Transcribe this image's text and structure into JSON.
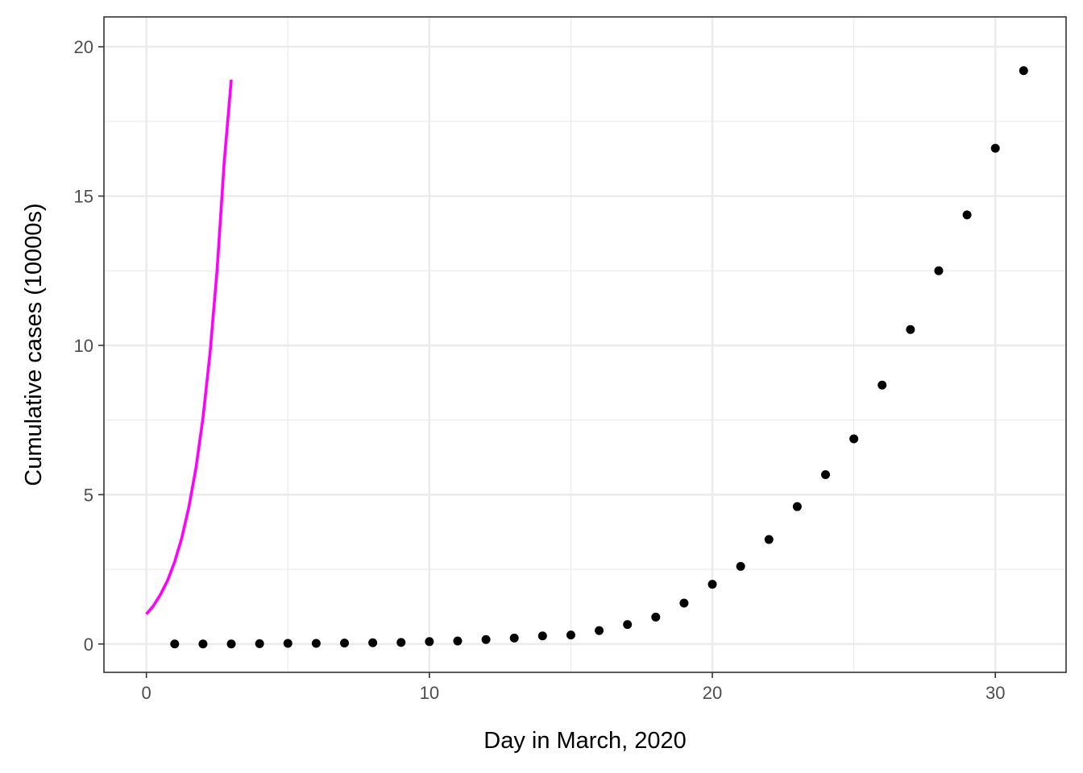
{
  "chart_data": {
    "type": "scatter",
    "title": "",
    "xlabel": "Day in March, 2020",
    "ylabel": "Cumulative cases (10000s)",
    "xlim": [
      -1.5,
      32.5
    ],
    "ylim": [
      -0.95,
      21.0
    ],
    "x_ticks": [
      0,
      10,
      20,
      30
    ],
    "y_ticks": [
      0,
      5,
      10,
      15,
      20
    ],
    "x_minor_ticks": [
      5,
      15,
      25
    ],
    "y_minor_ticks": [
      2.5,
      7.5,
      12.5,
      17.5
    ],
    "grid": true,
    "legend": "none",
    "series": [
      {
        "kind": "points",
        "color": "#000000",
        "x": [
          1,
          2,
          3,
          4,
          5,
          6,
          7,
          8,
          9,
          10,
          11,
          12,
          13,
          14,
          15,
          16,
          17,
          18,
          19,
          20,
          21,
          22,
          23,
          24,
          25,
          26,
          27,
          28,
          29,
          30,
          31
        ],
        "values": [
          0.0,
          0.0,
          0.0,
          0.01,
          0.02,
          0.02,
          0.03,
          0.04,
          0.05,
          0.08,
          0.1,
          0.15,
          0.2,
          0.27,
          0.3,
          0.45,
          0.65,
          0.9,
          1.37,
          2.0,
          2.6,
          3.5,
          4.6,
          5.67,
          6.87,
          8.67,
          10.53,
          12.5,
          14.37,
          16.6,
          19.2
        ]
      },
      {
        "kind": "line",
        "color": "#ff00ff",
        "x": [
          0,
          0.25,
          0.5,
          0.75,
          1,
          1.25,
          1.5,
          1.75,
          2,
          2.25,
          2.5,
          2.75,
          3
        ],
        "values": [
          1.0,
          1.28,
          1.66,
          2.13,
          2.75,
          3.55,
          4.58,
          5.88,
          7.57,
          9.75,
          12.54,
          16.14,
          18.9
        ]
      }
    ]
  }
}
